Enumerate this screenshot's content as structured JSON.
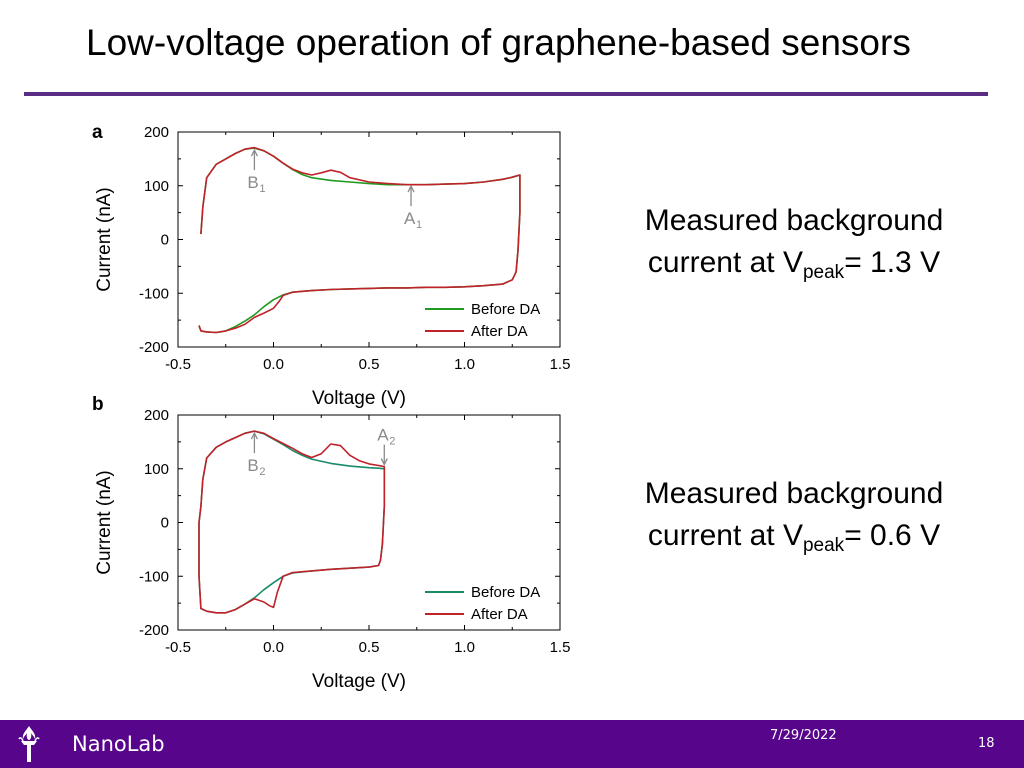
{
  "slide": {
    "title": "Low-voltage operation of graphene-based sensors",
    "notes": [
      {
        "text": "Measured background current at V",
        "sub": "peak",
        "suffix": "= 1.3 V"
      },
      {
        "text": "Measured background current at V",
        "sub": "peak",
        "suffix": "= 0.6 V"
      }
    ]
  },
  "footer": {
    "brand": "NanoLab",
    "date": "7/29/2022",
    "page": "18"
  },
  "colors": {
    "accent": "#5b2c86",
    "footer": "#57068c",
    "before_a": "#1f9a1f",
    "before_b": "#1a8a6a",
    "after": "#c0222a",
    "annotation": "#8a8a8a"
  },
  "chart_data": [
    {
      "type": "line",
      "panel_label": "a",
      "xlabel": "Voltage (V)",
      "ylabel": "Current (nA)",
      "xlim": [
        -0.5,
        1.5
      ],
      "ylim": [
        -200,
        200
      ],
      "xticks": [
        -0.5,
        0.0,
        0.5,
        1.0,
        1.5
      ],
      "xtick_labels": [
        "-0.5",
        "0.0",
        "0.5",
        "1.0",
        "1.5"
      ],
      "yticks": [
        -200,
        -100,
        0,
        100,
        200
      ],
      "ytick_labels": [
        "-200",
        "-100",
        "0",
        "100",
        "200"
      ],
      "legend_position": "bottom-right",
      "annotations": [
        {
          "label": "B",
          "sub": "1",
          "x": -0.1,
          "y": 170,
          "arrow": "up"
        },
        {
          "label": "A",
          "sub": "1",
          "x": 0.72,
          "y": 103,
          "arrow": "up"
        }
      ],
      "series": [
        {
          "name": "Before DA",
          "color_key": "before_a",
          "x": [
            -0.38,
            -0.37,
            -0.35,
            -0.3,
            -0.25,
            -0.2,
            -0.15,
            -0.1,
            -0.05,
            0.0,
            0.05,
            0.1,
            0.15,
            0.2,
            0.3,
            0.4,
            0.5,
            0.6,
            0.7,
            0.8,
            0.9,
            1.0,
            1.1,
            1.2,
            1.25,
            1.29,
            1.29,
            1.28,
            1.27,
            1.25,
            1.2,
            1.1,
            1.0,
            0.9,
            0.8,
            0.7,
            0.6,
            0.5,
            0.4,
            0.3,
            0.2,
            0.1,
            0.05,
            0.0,
            -0.05,
            -0.1,
            -0.15,
            -0.2,
            -0.25,
            -0.3,
            -0.35,
            -0.38,
            -0.39
          ],
          "y": [
            10,
            60,
            115,
            140,
            150,
            160,
            168,
            170,
            165,
            155,
            142,
            130,
            121,
            115,
            110,
            107,
            104,
            102,
            102,
            102,
            103,
            104,
            107,
            112,
            116,
            120,
            50,
            -20,
            -60,
            -75,
            -83,
            -86,
            -88,
            -89,
            -89,
            -90,
            -90,
            -91,
            -92,
            -93,
            -95,
            -98,
            -103,
            -112,
            -125,
            -140,
            -152,
            -162,
            -170,
            -173,
            -172,
            -170,
            -160
          ]
        },
        {
          "name": "After DA",
          "color_key": "after",
          "x": [
            -0.38,
            -0.37,
            -0.35,
            -0.3,
            -0.25,
            -0.2,
            -0.15,
            -0.1,
            -0.05,
            0.0,
            0.05,
            0.1,
            0.15,
            0.2,
            0.25,
            0.3,
            0.35,
            0.4,
            0.5,
            0.6,
            0.7,
            0.8,
            0.9,
            1.0,
            1.1,
            1.2,
            1.25,
            1.29,
            1.29,
            1.28,
            1.27,
            1.25,
            1.2,
            1.1,
            1.0,
            0.9,
            0.8,
            0.7,
            0.6,
            0.5,
            0.4,
            0.3,
            0.2,
            0.1,
            0.05,
            0.03,
            0.0,
            -0.05,
            -0.1,
            -0.15,
            -0.2,
            -0.25,
            -0.3,
            -0.35,
            -0.38,
            -0.39
          ],
          "y": [
            10,
            60,
            115,
            140,
            150,
            160,
            168,
            171,
            165,
            155,
            142,
            131,
            124,
            120,
            124,
            129,
            125,
            115,
            107,
            104,
            102,
            102,
            103,
            104,
            107,
            112,
            116,
            120,
            50,
            -20,
            -60,
            -75,
            -83,
            -86,
            -88,
            -89,
            -89,
            -90,
            -90,
            -91,
            -92,
            -93,
            -95,
            -98,
            -104,
            -115,
            -128,
            -137,
            -145,
            -158,
            -165,
            -170,
            -173,
            -172,
            -170,
            -160
          ]
        }
      ]
    },
    {
      "type": "line",
      "panel_label": "b",
      "xlabel": "Voltage (V)",
      "ylabel": "Current (nA)",
      "xlim": [
        -0.5,
        1.5
      ],
      "ylim": [
        -200,
        200
      ],
      "xticks": [
        -0.5,
        0.0,
        0.5,
        1.0,
        1.5
      ],
      "xtick_labels": [
        "-0.5",
        "0.0",
        "0.5",
        "1.0",
        "1.5"
      ],
      "yticks": [
        -200,
        -100,
        0,
        100,
        200
      ],
      "ytick_labels": [
        "-200",
        "-100",
        "0",
        "100",
        "200"
      ],
      "legend_position": "bottom-right",
      "annotations": [
        {
          "label": "B",
          "sub": "2",
          "x": -0.1,
          "y": 170,
          "arrow": "up"
        },
        {
          "label": "A",
          "sub": "2",
          "x": 0.58,
          "y": 104,
          "arrow": "down"
        }
      ],
      "series": [
        {
          "name": "Before DA",
          "color_key": "before_b",
          "x": [
            -0.39,
            -0.38,
            -0.37,
            -0.35,
            -0.3,
            -0.25,
            -0.2,
            -0.15,
            -0.1,
            -0.05,
            0.0,
            0.05,
            0.1,
            0.15,
            0.2,
            0.3,
            0.4,
            0.5,
            0.55,
            0.58,
            0.58,
            0.57,
            0.56,
            0.55,
            0.5,
            0.4,
            0.3,
            0.2,
            0.1,
            0.05,
            0.0,
            -0.05,
            -0.1,
            -0.15,
            -0.2,
            -0.25,
            -0.3,
            -0.35,
            -0.38,
            -0.39,
            -0.39
          ],
          "y": [
            0,
            30,
            80,
            120,
            140,
            150,
            158,
            166,
            170,
            165,
            155,
            145,
            134,
            125,
            118,
            110,
            105,
            102,
            101,
            100,
            30,
            -40,
            -70,
            -80,
            -83,
            -85,
            -87,
            -90,
            -94,
            -100,
            -112,
            -125,
            -140,
            -152,
            -162,
            -168,
            -168,
            -165,
            -160,
            -100,
            0
          ]
        },
        {
          "name": "After DA",
          "color_key": "after",
          "x": [
            -0.39,
            -0.38,
            -0.37,
            -0.35,
            -0.3,
            -0.25,
            -0.2,
            -0.15,
            -0.1,
            -0.05,
            0.0,
            0.05,
            0.1,
            0.15,
            0.2,
            0.25,
            0.3,
            0.35,
            0.4,
            0.45,
            0.5,
            0.55,
            0.58,
            0.58,
            0.57,
            0.56,
            0.55,
            0.5,
            0.4,
            0.3,
            0.2,
            0.1,
            0.05,
            0.02,
            0.0,
            -0.02,
            -0.05,
            -0.1,
            -0.15,
            -0.2,
            -0.25,
            -0.3,
            -0.35,
            -0.38,
            -0.39,
            -0.39
          ],
          "y": [
            0,
            30,
            80,
            120,
            140,
            150,
            158,
            166,
            170,
            166,
            156,
            147,
            138,
            128,
            121,
            128,
            146,
            143,
            125,
            115,
            109,
            106,
            104,
            30,
            -40,
            -70,
            -80,
            -83,
            -85,
            -87,
            -90,
            -93,
            -100,
            -130,
            -158,
            -155,
            -148,
            -142,
            -152,
            -162,
            -168,
            -168,
            -165,
            -160,
            -100,
            0
          ]
        }
      ]
    }
  ]
}
